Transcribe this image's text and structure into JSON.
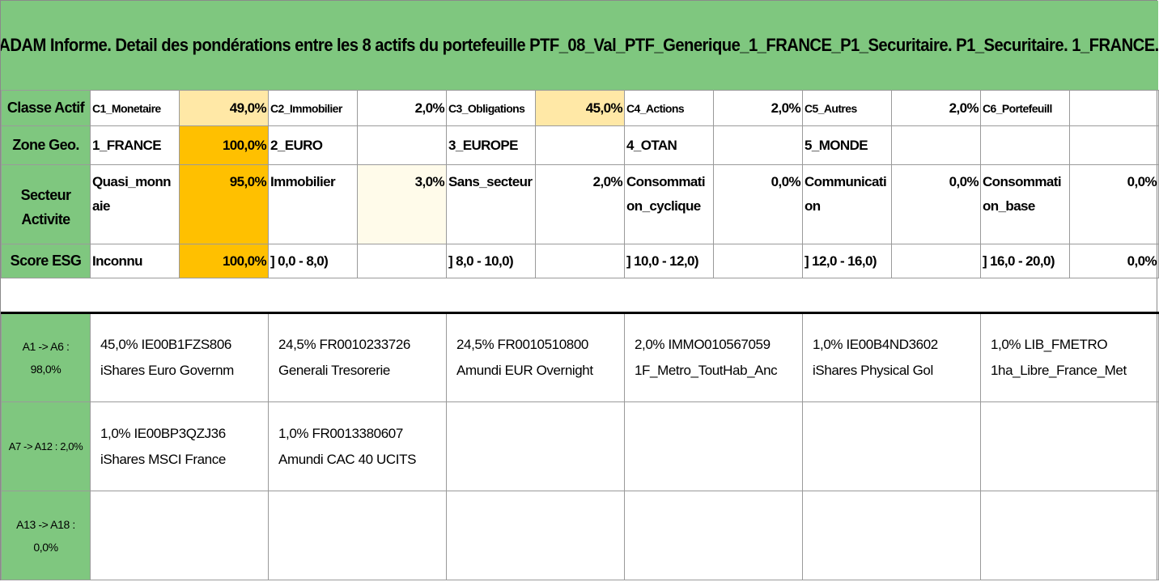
{
  "title": "ADAM Informe. Detail des pondérations entre les 8 actifs du portefeuille PTF_08_Val_PTF_Generique_1_FRANCE_P1_Securitaire. P1_Securitaire. 1_FRANCE.",
  "colors": {
    "header_green": "#7fc77f",
    "pale_yellow": "#ffe8a6",
    "gold": "#ffc000"
  },
  "rows": {
    "classe": {
      "label": "Classe Actif",
      "cells": [
        {
          "name": "C1_Monetaire",
          "pct": "49,0%"
        },
        {
          "name": "C2_Immobilier",
          "pct": "2,0%"
        },
        {
          "name": "C3_Obligations",
          "pct": "45,0%"
        },
        {
          "name": "C4_Actions",
          "pct": "2,0%"
        },
        {
          "name": "C5_Autres",
          "pct": "2,0%"
        },
        {
          "name": "C6_Portefeuill",
          "pct": ""
        }
      ]
    },
    "zone": {
      "label": "Zone Geo.",
      "cells": [
        {
          "name": "1_FRANCE",
          "pct": "100,0%"
        },
        {
          "name": "2_EURO",
          "pct": ""
        },
        {
          "name": "3_EUROPE",
          "pct": ""
        },
        {
          "name": "4_OTAN",
          "pct": ""
        },
        {
          "name": "5_MONDE",
          "pct": ""
        },
        {
          "name": "",
          "pct": ""
        }
      ]
    },
    "secteur": {
      "label_1": "Secteur",
      "label_2": "Activite",
      "cells": [
        {
          "name_1": "Quasi_monn",
          "name_2": "aie",
          "pct": "95,0%"
        },
        {
          "name_1": "Immobilier",
          "name_2": "",
          "pct": "3,0%"
        },
        {
          "name_1": "Sans_secteur",
          "name_2": "",
          "pct": "2,0%"
        },
        {
          "name_1": "Consommati",
          "name_2": "on_cyclique",
          "pct": "0,0%"
        },
        {
          "name_1": "Communicati",
          "name_2": "on",
          "pct": "0,0%"
        },
        {
          "name_1": "Consommati",
          "name_2": "on_base",
          "pct": "0,0%"
        }
      ]
    },
    "esg": {
      "label": "Score ESG",
      "cells": [
        {
          "name": "Inconnu",
          "pct": "100,0%"
        },
        {
          "name": "] 0,0 - 8,0)",
          "pct": ""
        },
        {
          "name": "] 8,0 - 10,0)",
          "pct": ""
        },
        {
          "name": "] 10,0 - 12,0)",
          "pct": ""
        },
        {
          "name": "] 12,0 - 16,0)",
          "pct": ""
        },
        {
          "name": "] 16,0 - 20,0)",
          "pct": "0,0%"
        }
      ]
    }
  },
  "assets": [
    {
      "label_1": "A1 -> A6 :",
      "label_2": "98,0%",
      "items": [
        {
          "line1": "45,0% IE00B1FZS806",
          "line2": "iShares Euro Governm"
        },
        {
          "line1": "24,5% FR0010233726",
          "line2": "Generali Tresorerie"
        },
        {
          "line1": "24,5% FR0010510800",
          "line2": "Amundi EUR Overnight"
        },
        {
          "line1": "2,0% IMMO010567059",
          "line2": "1F_Metro_ToutHab_Anc"
        },
        {
          "line1": "1,0% IE00B4ND3602",
          "line2": "iShares Physical Gol"
        },
        {
          "line1": "1,0% LIB_FMETRO",
          "line2": "1ha_Libre_France_Met"
        }
      ]
    },
    {
      "label_1": "A7 -> A12 : 2,0%",
      "label_2": "",
      "items": [
        {
          "line1": "1,0% IE00BP3QZJ36",
          "line2": "iShares MSCI France"
        },
        {
          "line1": "1,0% FR0013380607",
          "line2": "Amundi CAC 40 UCITS"
        },
        {
          "line1": "",
          "line2": ""
        },
        {
          "line1": "",
          "line2": ""
        },
        {
          "line1": "",
          "line2": ""
        },
        {
          "line1": "",
          "line2": ""
        }
      ]
    },
    {
      "label_1": "A13 -> A18 :",
      "label_2": "0,0%",
      "items": [
        {
          "line1": "",
          "line2": ""
        },
        {
          "line1": "",
          "line2": ""
        },
        {
          "line1": "",
          "line2": ""
        },
        {
          "line1": "",
          "line2": ""
        },
        {
          "line1": "",
          "line2": ""
        },
        {
          "line1": "",
          "line2": ""
        }
      ]
    }
  ]
}
